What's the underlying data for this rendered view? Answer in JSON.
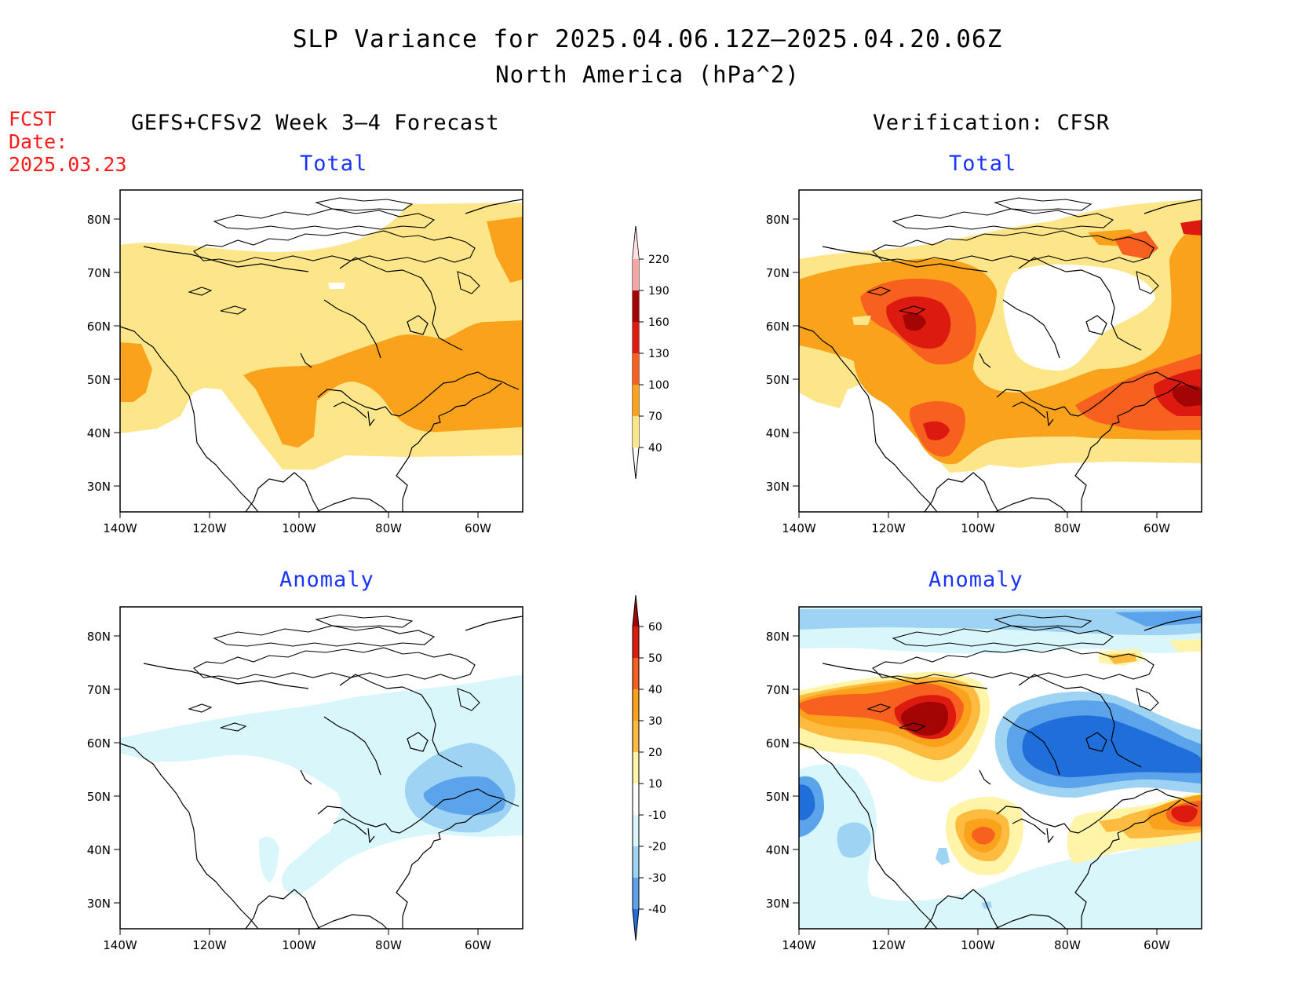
{
  "header": {
    "title": "SLP Variance for 2025.04.06.12Z–2025.04.20.06Z",
    "subtitle": "North America (hPa^2)",
    "fcst_date": "FCST Date: 2025.03.23",
    "left_heading": "GEFS+CFSv2 Week 3–4 Forecast",
    "right_heading": "Verification: CFSR"
  },
  "panels": {
    "fcst_total": {
      "title": "Total"
    },
    "verif_total": {
      "title": "Total"
    },
    "fcst_anom": {
      "title": "Anomaly"
    },
    "verif_anom": {
      "title": "Anomaly"
    }
  },
  "axes": {
    "lon_ticks": [
      "140W",
      "120W",
      "100W",
      "80W",
      "60W"
    ],
    "lat_ticks": [
      "80N",
      "70N",
      "60N",
      "50N",
      "40N",
      "30N"
    ]
  },
  "colorbars": {
    "total": {
      "levels": [
        "40",
        "70",
        "100",
        "130",
        "160",
        "190",
        "220"
      ],
      "colors": [
        "#fde68a",
        "#fba21c",
        "#f7601e",
        "#dd1a10",
        "#a30505",
        "#f4a6a6",
        "#fde0e0"
      ]
    },
    "anomaly": {
      "levels": [
        "60",
        "50",
        "40",
        "30",
        "20",
        "10",
        "-10",
        "-20",
        "-30",
        "-40"
      ],
      "colors": [
        "#a30505",
        "#dd1a10",
        "#f7601e",
        "#fba21c",
        "#fdbb3f",
        "#fff4a8",
        "#ffffff",
        "#d9f7fb",
        "#9fd3f3",
        "#5ba3ea",
        "#1f6ed9"
      ]
    }
  }
}
